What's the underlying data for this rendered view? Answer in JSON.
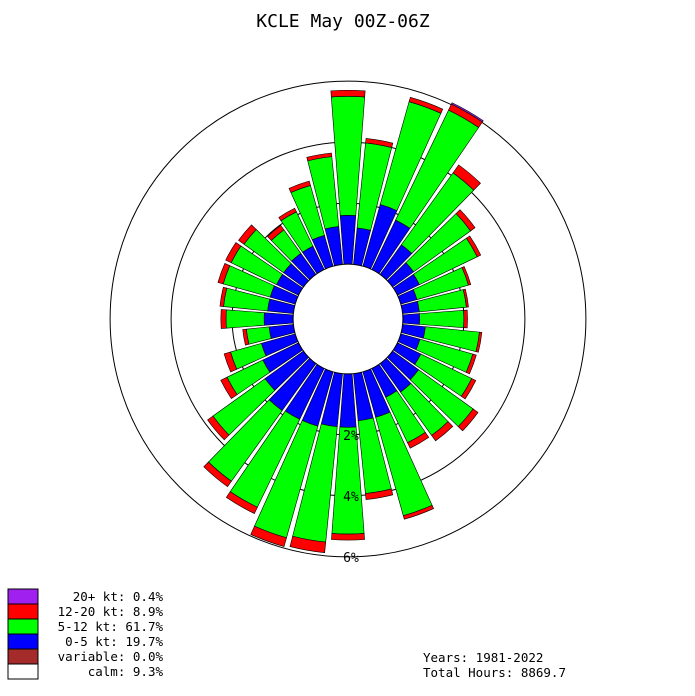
{
  "chart_data": {
    "type": "wind-rose",
    "title": "KCLE May 00Z-06Z",
    "rings": [
      {
        "value": 2,
        "label": "2%"
      },
      {
        "value": 4,
        "label": "4%"
      },
      {
        "value": 6,
        "label": "6%"
      }
    ],
    "calm_radius_pct": 1.8,
    "speed_bins": [
      {
        "name": "0-5 kt",
        "color": "#0000ff"
      },
      {
        "name": "5-12 kt",
        "color": "#00ff00"
      },
      {
        "name": "12-20 kt",
        "color": "#ff0000"
      },
      {
        "name": "20+ kt",
        "color": "#a020f0"
      }
    ],
    "directions": [
      {
        "deg": 0,
        "values": [
          1.6,
          3.9,
          0.2,
          0.0
        ]
      },
      {
        "deg": 10,
        "values": [
          1.2,
          2.8,
          0.15,
          0.0
        ]
      },
      {
        "deg": 20,
        "values": [
          2.1,
          3.5,
          0.15,
          0.0
        ]
      },
      {
        "deg": 30,
        "values": [
          1.8,
          4.0,
          0.22,
          0.05
        ]
      },
      {
        "deg": 40,
        "values": [
          1.2,
          2.9,
          0.32,
          0.0
        ]
      },
      {
        "deg": 50,
        "values": [
          0.85,
          2.3,
          0.18,
          0.0
        ]
      },
      {
        "deg": 60,
        "values": [
          0.8,
          2.1,
          0.13,
          0.0
        ]
      },
      {
        "deg": 70,
        "values": [
          0.55,
          1.75,
          0.08,
          0.0
        ]
      },
      {
        "deg": 80,
        "values": [
          0.55,
          1.55,
          0.07,
          0.0
        ]
      },
      {
        "deg": 90,
        "values": [
          0.55,
          1.45,
          0.12,
          0.0
        ]
      },
      {
        "deg": 100,
        "values": [
          0.75,
          1.78,
          0.08,
          0.0
        ]
      },
      {
        "deg": 110,
        "values": [
          0.65,
          1.8,
          0.12,
          0.0
        ]
      },
      {
        "deg": 120,
        "values": [
          0.85,
          1.85,
          0.15,
          0.0
        ]
      },
      {
        "deg": 130,
        "values": [
          1.05,
          2.2,
          0.2,
          0.0
        ]
      },
      {
        "deg": 140,
        "values": [
          1.15,
          1.75,
          0.22,
          0.0
        ]
      },
      {
        "deg": 150,
        "values": [
          1.05,
          1.65,
          0.2,
          0.0
        ]
      },
      {
        "deg": 160,
        "values": [
          1.55,
          3.35,
          0.12,
          0.0
        ]
      },
      {
        "deg": 170,
        "values": [
          1.55,
          2.4,
          0.2,
          0.0
        ]
      },
      {
        "deg": 180,
        "values": [
          1.75,
          3.5,
          0.2,
          0.0
        ]
      },
      {
        "deg": 190,
        "values": [
          1.75,
          3.8,
          0.35,
          0.0
        ]
      },
      {
        "deg": 200,
        "values": [
          1.85,
          3.8,
          0.3,
          0.0
        ]
      },
      {
        "deg": 210,
        "values": [
          1.85,
          3.2,
          0.23,
          0.0
        ]
      },
      {
        "deg": 220,
        "values": [
          1.9,
          2.85,
          0.22,
          0.0
        ]
      },
      {
        "deg": 230,
        "values": [
          1.55,
          2.1,
          0.22,
          0.0
        ]
      },
      {
        "deg": 240,
        "values": [
          1.3,
          1.3,
          0.23,
          0.0
        ]
      },
      {
        "deg": 250,
        "values": [
          1.15,
          1.05,
          0.22,
          0.0
        ]
      },
      {
        "deg": 260,
        "values": [
          0.8,
          0.75,
          0.12,
          0.0
        ]
      },
      {
        "deg": 270,
        "values": [
          0.95,
          1.25,
          0.17,
          0.0
        ]
      },
      {
        "deg": 280,
        "values": [
          0.85,
          1.45,
          0.12,
          0.0
        ]
      },
      {
        "deg": 290,
        "values": [
          0.85,
          1.6,
          0.18,
          0.0
        ]
      },
      {
        "deg": 300,
        "values": [
          0.8,
          1.65,
          0.2,
          0.0
        ]
      },
      {
        "deg": 310,
        "values": [
          0.8,
          1.6,
          0.22,
          0.0
        ]
      },
      {
        "deg": 320,
        "values": [
          0.85,
          0.95,
          0.18,
          0.0
        ]
      },
      {
        "deg": 330,
        "values": [
          0.85,
          1.25,
          0.13,
          0.0
        ]
      },
      {
        "deg": 340,
        "values": [
          1.05,
          1.7,
          0.15,
          0.0
        ]
      },
      {
        "deg": 350,
        "values": [
          1.25,
          2.3,
          0.12,
          0.0
        ]
      }
    ]
  },
  "legend": [
    {
      "swatch": "#a020f0",
      "text": "   20+ kt:  0.4%"
    },
    {
      "swatch": "#ff0000",
      "text": "12-20 kt:  8.9%"
    },
    {
      "swatch": "#00ff00",
      "text": "  5-12 kt: 61.7%"
    },
    {
      "swatch": "#0000ff",
      "text": "   0-5 kt: 19.7%"
    },
    {
      "swatch": "#a52a2a",
      "text": "variable:  0.0%"
    },
    {
      "swatch": "#ffffff",
      "text": "    calm:  9.3%"
    }
  ],
  "info": {
    "years": "Years: 1981-2022",
    "hours": "Total Hours: 8869.7"
  }
}
